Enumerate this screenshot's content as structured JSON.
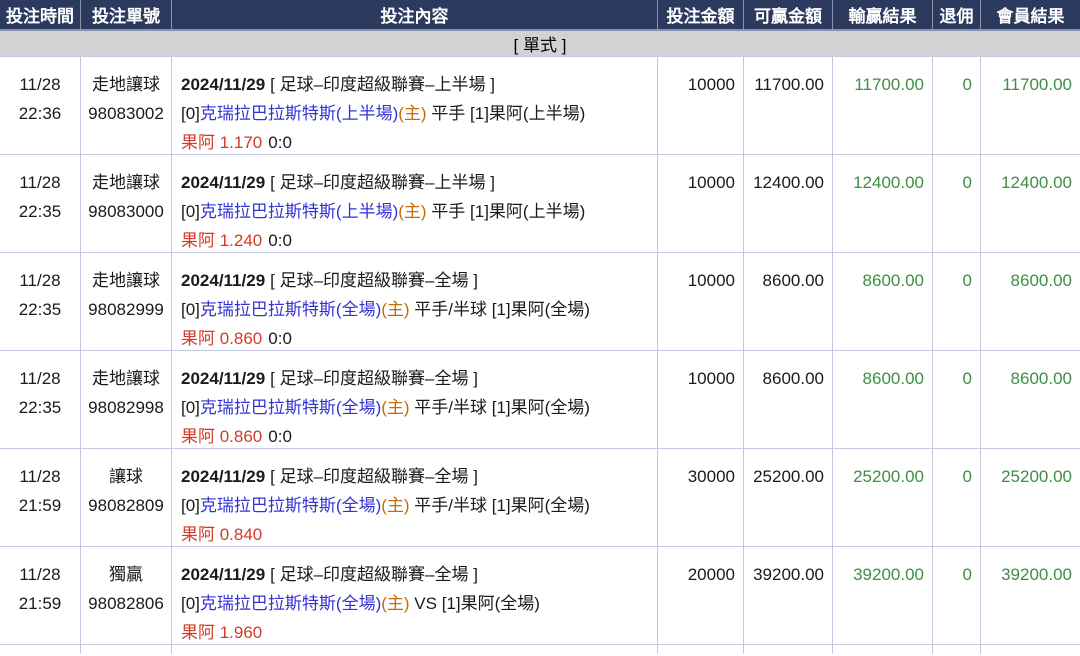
{
  "table": {
    "columns": [
      "投注時間",
      "投注單號",
      "投注內容",
      "投注金額",
      "可贏金額",
      "輸贏結果",
      "退佣",
      "會員結果"
    ],
    "group_label": "[ 單式 ]"
  },
  "colors": {
    "header_bg": "#2b3a5e",
    "header_text": "#ffffff",
    "group_bg": "#d2d2d2",
    "border": "#c6c6de",
    "green": "#3f8e43",
    "red": "#d43a28",
    "blue": "#3232d8",
    "orange": "#c96a00"
  },
  "rows": [
    {
      "date": "11/28",
      "time": "22:36",
      "type": "走地讓球",
      "number": "98083002",
      "match_date": "2024/11/29",
      "league": "[ 足球–印度超級聯賽–上半場 ]",
      "sel_prefix": "[0]",
      "home": "克瑞拉巴拉斯特斯(上半場)",
      "home_tag": "(主)",
      "mid": " 平手 ",
      "away": "[1]果阿(上半場)",
      "result_red": "果阿 1.170",
      "score": "0:0",
      "bet_amount": "10000",
      "win_amount": "11700.00",
      "result_amount": "11700.00",
      "rebate": "0",
      "member_result": "11700.00"
    },
    {
      "date": "11/28",
      "time": "22:35",
      "type": "走地讓球",
      "number": "98083000",
      "match_date": "2024/11/29",
      "league": "[ 足球–印度超級聯賽–上半場 ]",
      "sel_prefix": "[0]",
      "home": "克瑞拉巴拉斯特斯(上半場)",
      "home_tag": "(主)",
      "mid": " 平手 ",
      "away": "[1]果阿(上半場)",
      "result_red": "果阿 1.240",
      "score": "0:0",
      "bet_amount": "10000",
      "win_amount": "12400.00",
      "result_amount": "12400.00",
      "rebate": "0",
      "member_result": "12400.00"
    },
    {
      "date": "11/28",
      "time": "22:35",
      "type": "走地讓球",
      "number": "98082999",
      "match_date": "2024/11/29",
      "league": "[ 足球–印度超級聯賽–全場 ]",
      "sel_prefix": "[0]",
      "home": "克瑞拉巴拉斯特斯(全場)",
      "home_tag": "(主)",
      "mid": " 平手/半球 ",
      "away": "[1]果阿(全場)",
      "result_red": "果阿 0.860",
      "score": "0:0",
      "bet_amount": "10000",
      "win_amount": "8600.00",
      "result_amount": "8600.00",
      "rebate": "0",
      "member_result": "8600.00"
    },
    {
      "date": "11/28",
      "time": "22:35",
      "type": "走地讓球",
      "number": "98082998",
      "match_date": "2024/11/29",
      "league": "[ 足球–印度超級聯賽–全場 ]",
      "sel_prefix": "[0]",
      "home": "克瑞拉巴拉斯特斯(全場)",
      "home_tag": "(主)",
      "mid": " 平手/半球 ",
      "away": "[1]果阿(全場)",
      "result_red": "果阿 0.860",
      "score": "0:0",
      "bet_amount": "10000",
      "win_amount": "8600.00",
      "result_amount": "8600.00",
      "rebate": "0",
      "member_result": "8600.00"
    },
    {
      "date": "11/28",
      "time": "21:59",
      "type": "讓球",
      "number": "98082809",
      "match_date": "2024/11/29",
      "league": "[ 足球–印度超級聯賽–全場 ]",
      "sel_prefix": "[0]",
      "home": "克瑞拉巴拉斯特斯(全場)",
      "home_tag": "(主)",
      "mid": " 平手/半球 ",
      "away": "[1]果阿(全場)",
      "result_red": "果阿 0.840",
      "score": "",
      "bet_amount": "30000",
      "win_amount": "25200.00",
      "result_amount": "25200.00",
      "rebate": "0",
      "member_result": "25200.00"
    },
    {
      "date": "11/28",
      "time": "21:59",
      "type": "獨贏",
      "number": "98082806",
      "match_date": "2024/11/29",
      "league": "[ 足球–印度超級聯賽–全場 ]",
      "sel_prefix": "[0]",
      "home": "克瑞拉巴拉斯特斯(全場)",
      "home_tag": "(主)",
      "mid": " VS ",
      "away": "[1]果阿(全場)",
      "result_red": "果阿 1.960",
      "score": "",
      "bet_amount": "20000",
      "win_amount": "39200.00",
      "result_amount": "39200.00",
      "rebate": "0",
      "member_result": "39200.00"
    }
  ]
}
